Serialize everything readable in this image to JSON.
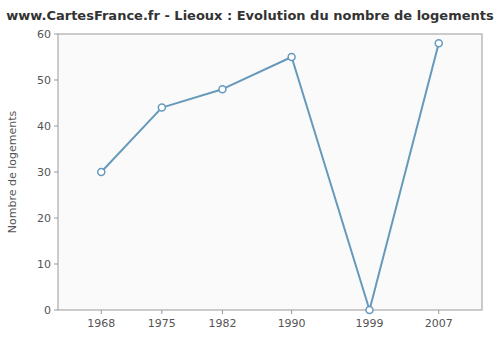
{
  "chart_data": {
    "type": "line",
    "title": "www.CartesFrance.fr - Lieoux : Evolution du nombre de logements",
    "ylabel": "Nombre de logements",
    "x": [
      1968,
      1975,
      1982,
      1990,
      1999,
      2007
    ],
    "values": [
      30,
      44,
      48,
      55,
      0,
      58
    ],
    "color": "#6699bb",
    "marker": "circle",
    "xlim": [
      1963,
      2012
    ],
    "xticks": [
      1968,
      1975,
      1982,
      1990,
      1999,
      2007
    ],
    "ylim": [
      0,
      60
    ],
    "yticks": [
      0,
      10,
      20,
      30,
      40,
      50,
      60
    ],
    "grid": false
  }
}
